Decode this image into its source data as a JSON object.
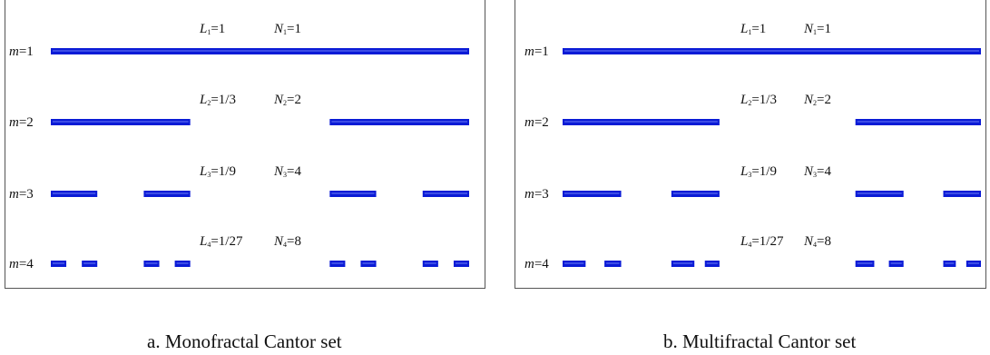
{
  "colors": {
    "segment": "#0a1bd6",
    "border": "#555555",
    "text": "#111111"
  },
  "panels": [
    {
      "caption": "a. Monofractal Cantor set",
      "rows": [
        {
          "m_label": "m=1",
          "m_var": "m",
          "m_val": "=1",
          "L_var": "L",
          "L_sub": "1",
          "L_val": "=1",
          "N_var": "N",
          "N_sub": "1",
          "N_val": "=1",
          "segments": [
            [
              0,
              1
            ]
          ]
        },
        {
          "m_label": "m=2",
          "m_var": "m",
          "m_val": "=2",
          "L_var": "L",
          "L_sub": "2",
          "L_val": "=1/3",
          "N_var": "N",
          "N_sub": "2",
          "N_val": "=2",
          "segments": [
            [
              0,
              0.3333
            ],
            [
              0.6667,
              1
            ]
          ]
        },
        {
          "m_label": "m=3",
          "m_var": "m",
          "m_val": "=3",
          "L_var": "L",
          "L_sub": "3",
          "L_val": "=1/9",
          "N_var": "N",
          "N_sub": "3",
          "N_val": "=4",
          "segments": [
            [
              0,
              0.1111
            ],
            [
              0.2222,
              0.3333
            ],
            [
              0.6667,
              0.7778
            ],
            [
              0.8889,
              1
            ]
          ]
        },
        {
          "m_label": "m=4",
          "m_var": "m",
          "m_val": "=4",
          "L_var": "L",
          "L_sub": "4",
          "L_val": "=1/27",
          "N_var": "N",
          "N_sub": "4",
          "N_val": "=8",
          "segments": [
            [
              0,
              0.037
            ],
            [
              0.0741,
              0.1111
            ],
            [
              0.2222,
              0.2593
            ],
            [
              0.2963,
              0.3333
            ],
            [
              0.6667,
              0.7037
            ],
            [
              0.7407,
              0.7778
            ],
            [
              0.8889,
              0.9259
            ],
            [
              0.963,
              1
            ]
          ]
        }
      ]
    },
    {
      "caption": "b. Multifractal Cantor set",
      "rows": [
        {
          "m_label": "m=1",
          "m_var": "m",
          "m_val": "=1",
          "L_var": "L",
          "L_sub": "1",
          "L_val": "=1",
          "N_var": "N",
          "N_sub": "1",
          "N_val": "=1",
          "segments": [
            [
              0,
              1
            ]
          ]
        },
        {
          "m_label": "m=2",
          "m_var": "m",
          "m_val": "=2",
          "L_var": "L",
          "L_sub": "2",
          "L_val": "=1/3",
          "N_var": "N",
          "N_sub": "2",
          "N_val": "=2",
          "segments": [
            [
              0,
              0.375
            ],
            [
              0.7,
              1
            ]
          ]
        },
        {
          "m_label": "m=3",
          "m_var": "m",
          "m_val": "=3",
          "L_var": "L",
          "L_sub": "3",
          "L_val": "=1/9",
          "N_var": "N",
          "N_sub": "3",
          "N_val": "=4",
          "segments": [
            [
              0,
              0.14
            ],
            [
              0.26,
              0.375
            ],
            [
              0.7,
              0.815
            ],
            [
              0.91,
              1
            ]
          ]
        },
        {
          "m_label": "m=4",
          "m_var": "m",
          "m_val": "=4",
          "L_var": "L",
          "L_sub": "4",
          "L_val": "=1/27",
          "N_var": "N",
          "N_sub": "4",
          "N_val": "=8",
          "segments": [
            [
              0,
              0.055
            ],
            [
              0.1,
              0.14
            ],
            [
              0.26,
              0.315
            ],
            [
              0.34,
              0.375
            ],
            [
              0.7,
              0.745
            ],
            [
              0.78,
              0.815
            ],
            [
              0.91,
              0.94
            ],
            [
              0.965,
              1
            ]
          ]
        }
      ]
    }
  ]
}
